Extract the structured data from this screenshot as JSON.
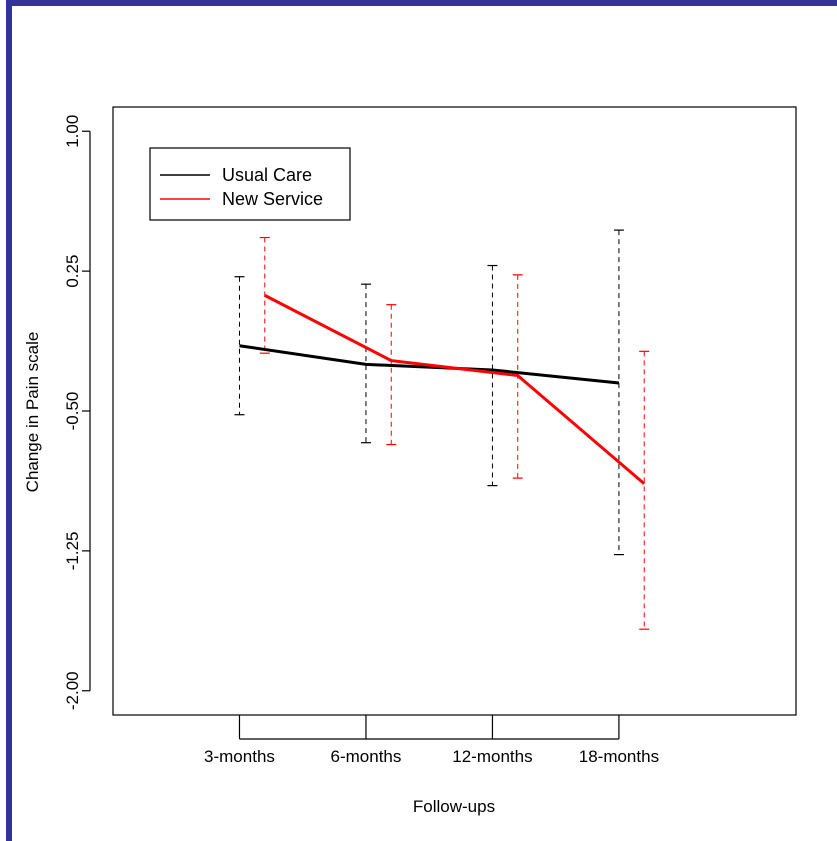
{
  "chart_data": {
    "type": "line",
    "xlabel": "Follow-ups",
    "ylabel": "Change in Pain scale",
    "categories": [
      "3-months",
      "6-months",
      "12-months",
      "18-months"
    ],
    "yticks": [
      "1.00",
      "0.25",
      "-0.50",
      "-1.25",
      "-2.00"
    ],
    "ytick_values": [
      1.0,
      0.25,
      -0.5,
      -1.25,
      -2.0
    ],
    "ylim": [
      -2.13,
      1.13
    ],
    "xlim": [
      0,
      5.4
    ],
    "grid": false,
    "legend_position": "top-left",
    "series": [
      {
        "name": "Usual Care",
        "color": "#000000",
        "x_offset": 0,
        "values": [
          -0.15,
          -0.25,
          -0.28,
          -0.35
        ],
        "lower": [
          -0.52,
          -0.67,
          -0.9,
          -1.27
        ],
        "upper": [
          0.22,
          0.18,
          0.28,
          0.47
        ]
      },
      {
        "name": "New Service",
        "color": "#ff0000",
        "x_offset": 0.2,
        "values": [
          0.12,
          -0.23,
          -0.31,
          -0.89
        ],
        "lower": [
          -0.19,
          -0.68,
          -0.86,
          -1.67
        ],
        "upper": [
          0.43,
          0.07,
          0.23,
          -0.18
        ]
      }
    ]
  }
}
